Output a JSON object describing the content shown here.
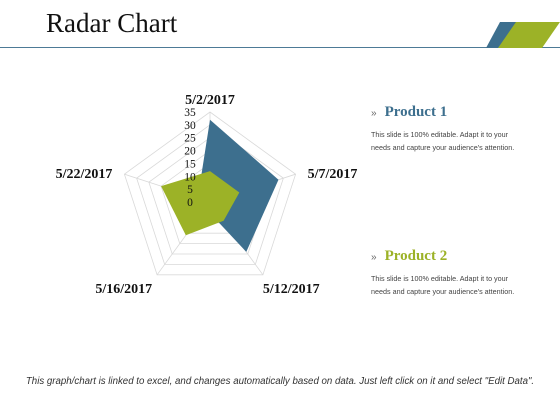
{
  "page": {
    "title": "Radar Chart",
    "footer": "This graph/chart is linked to excel, and changes automatically based on data. Just left click on it and select \"Edit Data\"."
  },
  "legend": [
    {
      "name": "Product 1",
      "color": "#3d6f8e",
      "chevron": "»",
      "text": "This slide is 100% editable. Adapt it to your needs and capture your audience's attention."
    },
    {
      "name": "Product 2",
      "color": "#9cb227",
      "chevron": "»",
      "text": "This slide is 100% editable. Adapt it to your needs and capture your audience's attention."
    }
  ],
  "colors": {
    "accent_blue": "#3d6f8e",
    "accent_green": "#9cb227",
    "title_rule": "#4d7a96"
  },
  "chart_data": {
    "type": "radar",
    "categories": [
      "5/2/2017",
      "5/7/2017",
      "5/12/2017",
      "5/16/2017",
      "5/22/2017"
    ],
    "ticks": [
      "0",
      "5",
      "10",
      "15",
      "20",
      "25",
      "30",
      "35"
    ],
    "rmax": 35,
    "grid": true,
    "series": [
      {
        "name": "Product 1",
        "color": "#3d6f8e",
        "values": [
          32,
          28,
          24,
          3,
          5
        ]
      },
      {
        "name": "Product 2",
        "color": "#9cb227",
        "values": [
          12,
          12,
          9,
          16,
          20
        ]
      }
    ]
  }
}
